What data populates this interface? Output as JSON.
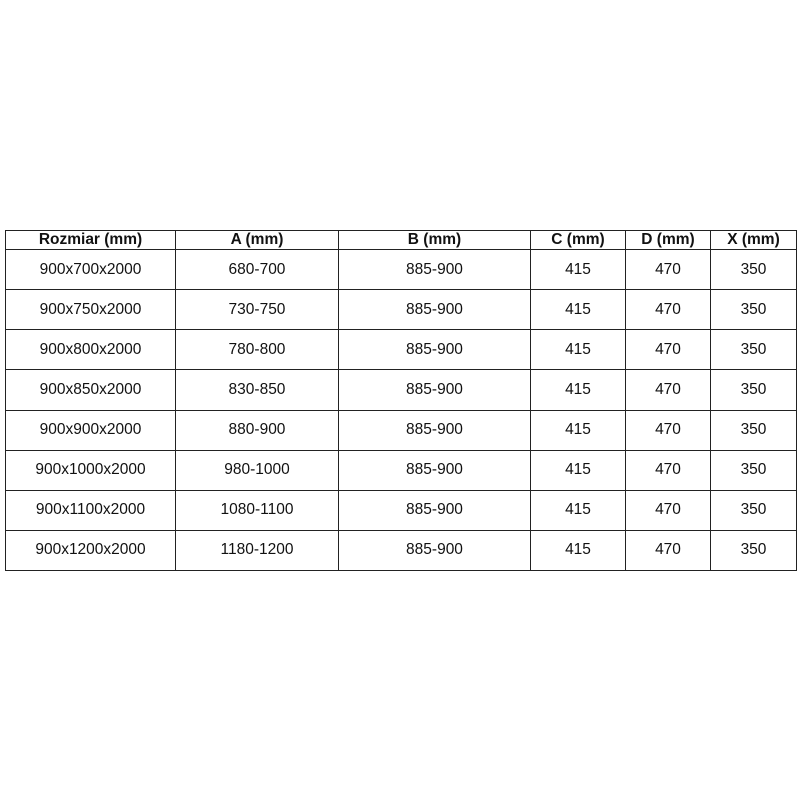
{
  "table": {
    "headers": [
      "Rozmiar (mm)",
      "A (mm)",
      "B (mm)",
      "C (mm)",
      "D (mm)",
      "X (mm)"
    ],
    "rows": [
      [
        "900x700x2000",
        "680-700",
        "885-900",
        "415",
        "470",
        "350"
      ],
      [
        "900x750x2000",
        "730-750",
        "885-900",
        "415",
        "470",
        "350"
      ],
      [
        "900x800x2000",
        "780-800",
        "885-900",
        "415",
        "470",
        "350"
      ],
      [
        "900x850x2000",
        "830-850",
        "885-900",
        "415",
        "470",
        "350"
      ],
      [
        "900x900x2000",
        "880-900",
        "885-900",
        "415",
        "470",
        "350"
      ],
      [
        "900x1000x2000",
        "980-1000",
        "885-900",
        "415",
        "470",
        "350"
      ],
      [
        "900x1100x2000",
        "1080-1100",
        "885-900",
        "415",
        "470",
        "350"
      ],
      [
        "900x1200x2000",
        "1180-1200",
        "885-900",
        "415",
        "470",
        "350"
      ]
    ]
  }
}
